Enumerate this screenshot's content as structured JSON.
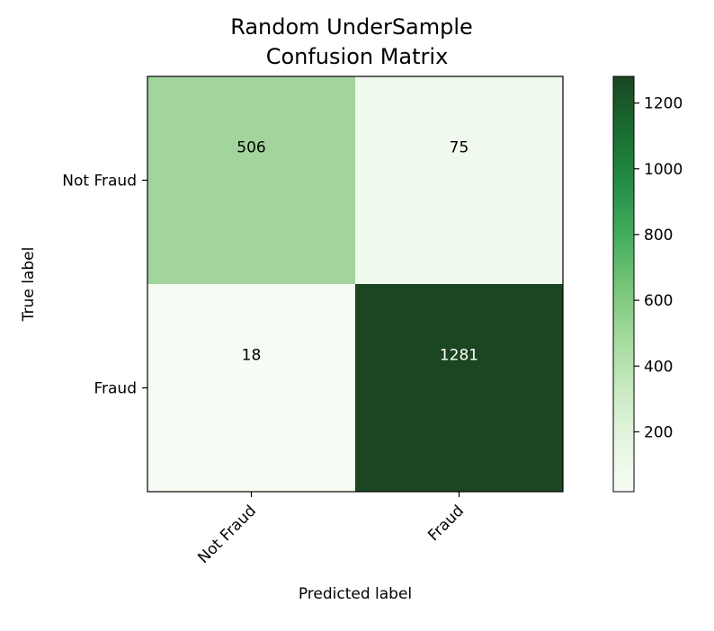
{
  "chart_data": {
    "type": "heatmap",
    "title": "Random UnderSample\nConfusion Matrix",
    "xlabel": "Predicted label",
    "ylabel": "True label",
    "x_categories": [
      "Not Fraud",
      "Fraud"
    ],
    "y_categories": [
      "Not Fraud",
      "Fraud"
    ],
    "values": [
      [
        506,
        75
      ],
      [
        18,
        1281
      ]
    ],
    "colormap": "Greens",
    "colorbar": {
      "min": 18,
      "max": 1281,
      "ticks": [
        200,
        400,
        600,
        800,
        1000,
        1200
      ]
    },
    "grid": false
  },
  "colors": {
    "cell_506": "#a2d49c",
    "cell_75": "#f0f9ed",
    "cell_18": "#f6fcf4",
    "cell_1281": "#1b4622",
    "text_dark": "#000000",
    "text_light": "#ffffff"
  }
}
